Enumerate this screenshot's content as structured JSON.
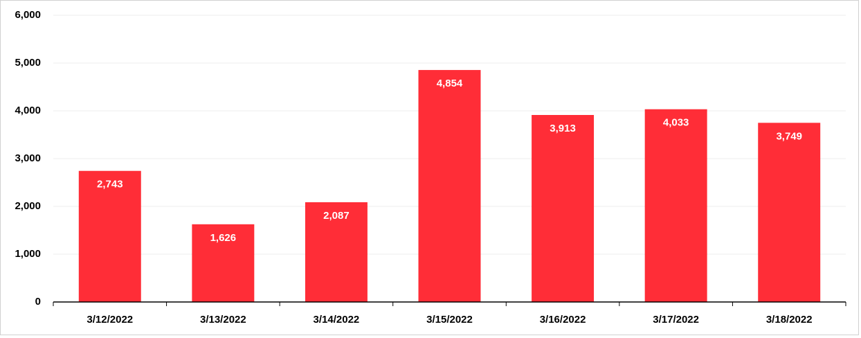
{
  "chart_data": {
    "type": "bar",
    "categories": [
      "3/12/2022",
      "3/13/2022",
      "3/14/2022",
      "3/15/2022",
      "3/16/2022",
      "3/17/2022",
      "3/18/2022"
    ],
    "values": [
      2743,
      1626,
      2087,
      4854,
      3913,
      4033,
      3749
    ],
    "value_labels": [
      "2,743",
      "1,626",
      "2,087",
      "4,854",
      "3,913",
      "4,033",
      "3,749"
    ],
    "color": "#ff2d37",
    "ylim": [
      0,
      6000
    ],
    "yticks": [
      0,
      {
        "value": 1000,
        "label": "1,000"
      },
      {
        "value": 2000,
        "label": "2,000"
      },
      {
        "value": 3000,
        "label": "3,000"
      },
      {
        "value": 4000,
        "label": "4,000"
      },
      {
        "value": 5000,
        "label": "5,000"
      },
      {
        "value": 6000,
        "label": "6,000"
      }
    ],
    "grid": true
  }
}
